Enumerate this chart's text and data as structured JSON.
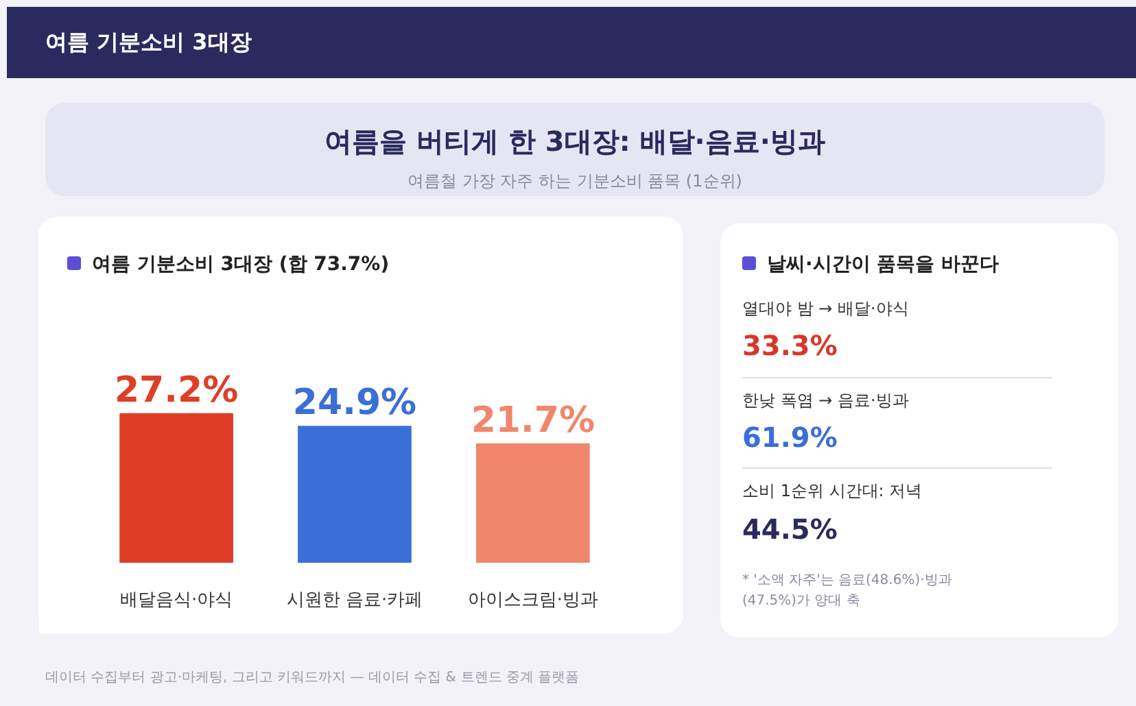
{
  "chart_data": [
    {
      "type": "other",
      "title": "여름 기분소비 3대장",
      "annotations": [
        "여름을 버티게 한 3대장: 배달·음료·빙과",
        "여름철 가장 자주 하는 기분소비 품목 (1순위)",
        "데이터 수집부터 광고·마케팅, 그리고 키워드까지 — 데이터 수집 & 트렌드 중계 플랫폼"
      ]
    },
    {
      "type": "bar",
      "title": "여름 기분소비 3대장 (합 73.7%)",
      "categories": [
        "배달음식·야식",
        "시원한 음료·카페",
        "아이스크림·빙과"
      ],
      "values": [
        27.2,
        24.9,
        21.7
      ],
      "colors": [
        "#e03d27",
        "#3a6fd8",
        "#f0876a"
      ],
      "value_labels": [
        "27.2%",
        "24.9%",
        "21.7%"
      ]
    },
    {
      "type": "other",
      "title": "날씨·시간이 품목을 바꾼다",
      "annotations": [
        "열대야 밤 → 배달·야식",
        "33.3%",
        "한낮 폭염 → 음료·빙과",
        "61.9%",
        "소비 1순위 시간대: 저녁",
        "44.5%",
        "* '소액 자주'는 음료(48.6%)·빙과(47.5%)가 양대 축"
      ]
    }
  ]
}
